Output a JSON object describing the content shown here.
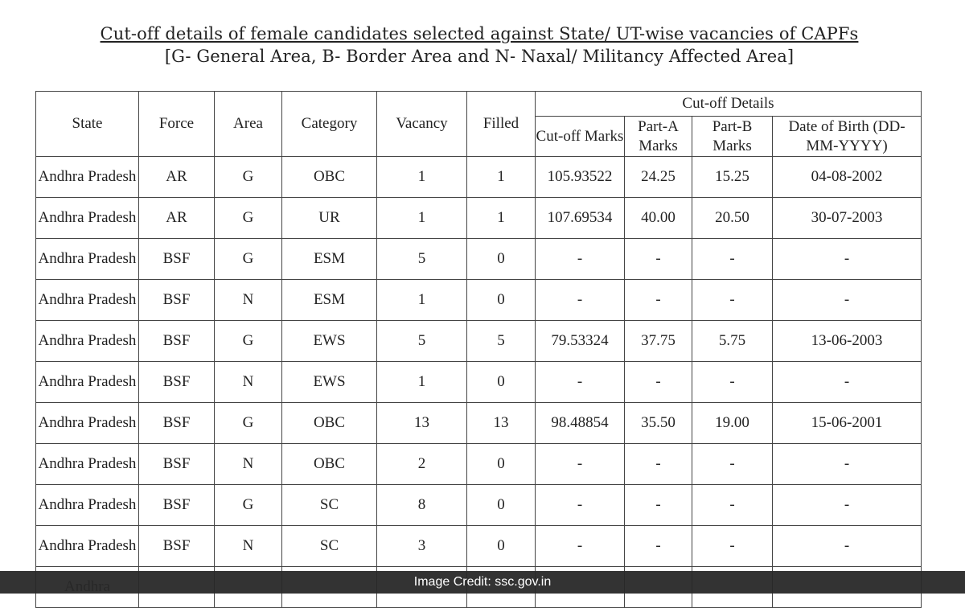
{
  "title": "Cut-off details of female candidates selected against State/ UT-wise vacancies of CAPFs",
  "subtitle": "[G- General Area, B- Border Area and N- Naxal/ Militancy Affected Area]",
  "headers": {
    "state": "State",
    "force": "Force",
    "area": "Area",
    "category": "Category",
    "vacancy": "Vacancy",
    "filled": "Filled",
    "cutoff_details": "Cut-off Details",
    "cutoff_marks": "Cut-off Marks",
    "part_a": "Part-A Marks",
    "part_b": "Part-B Marks",
    "dob": "Date of Birth (DD-MM-YYYY)"
  },
  "rows": [
    [
      "Andhra Pradesh",
      "AR",
      "G",
      "OBC",
      "1",
      "1",
      "105.93522",
      "24.25",
      "15.25",
      "04-08-2002"
    ],
    [
      "Andhra Pradesh",
      "AR",
      "G",
      "UR",
      "1",
      "1",
      "107.69534",
      "40.00",
      "20.50",
      "30-07-2003"
    ],
    [
      "Andhra Pradesh",
      "BSF",
      "G",
      "ESM",
      "5",
      "0",
      "-",
      "-",
      "-",
      "-"
    ],
    [
      "Andhra Pradesh",
      "BSF",
      "N",
      "ESM",
      "1",
      "0",
      "-",
      "-",
      "-",
      "-"
    ],
    [
      "Andhra Pradesh",
      "BSF",
      "G",
      "EWS",
      "5",
      "5",
      "79.53324",
      "37.75",
      "5.75",
      "13-06-2003"
    ],
    [
      "Andhra Pradesh",
      "BSF",
      "N",
      "EWS",
      "1",
      "0",
      "-",
      "-",
      "-",
      "-"
    ],
    [
      "Andhra Pradesh",
      "BSF",
      "G",
      "OBC",
      "13",
      "13",
      "98.48854",
      "35.50",
      "19.00",
      "15-06-2001"
    ],
    [
      "Andhra Pradesh",
      "BSF",
      "N",
      "OBC",
      "2",
      "0",
      "-",
      "-",
      "-",
      "-"
    ],
    [
      "Andhra Pradesh",
      "BSF",
      "G",
      "SC",
      "8",
      "0",
      "-",
      "-",
      "-",
      "-"
    ],
    [
      "Andhra Pradesh",
      "BSF",
      "N",
      "SC",
      "3",
      "0",
      "-",
      "-",
      "-",
      "-"
    ],
    [
      "Andhra",
      "",
      "",
      "",
      "",
      "",
      "",
      "",
      "",
      ""
    ]
  ],
  "credit": "Image Credit: ssc.gov.in"
}
